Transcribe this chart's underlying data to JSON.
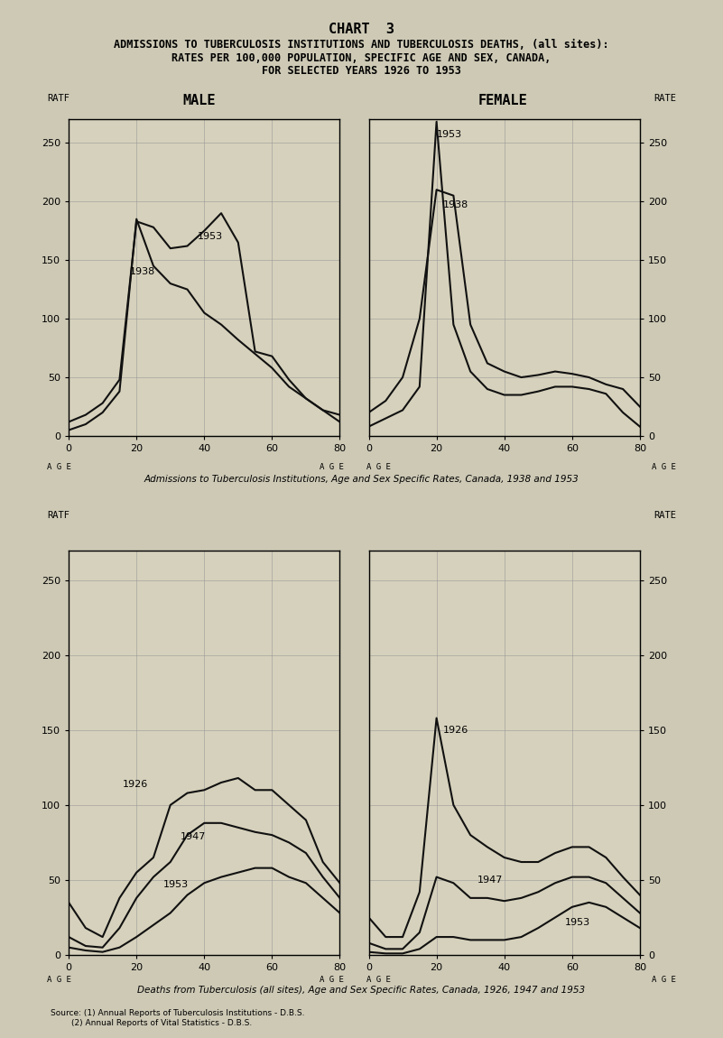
{
  "title_line1": "CHART  3",
  "title_line2": "ADMISSIONS TO TUBERCULOSIS INSTITUTIONS AND TUBERCULOSIS DEATHS, (all sites):",
  "title_line3": "RATES PER 100,000 POPULATION, SPECIFIC AGE AND SEX, CANADA,",
  "title_line4": "FOR SELECTED YEARS 1926 TO 1953",
  "subtitle_top": "Admissions to Tuberculosis Institutions, Age and Sex Specific Rates, Canada, 1938 and 1953",
  "subtitle_bottom": "Deaths from Tuberculosis (all sites), Age and Sex Specific Rates, Canada, 1926, 1947 and 1953",
  "source_line1": "Source: (1) Annual Reports of Tuberculosis Institutions - D.B.S.",
  "source_line2": "        (2) Annual Reports of Vital Statistics - D.B.S.",
  "male_label": "MALE",
  "female_label": "FEMALE",
  "rate_label": "RATE",
  "ratf_label": "RATF",
  "age_label": "AGE",
  "ylim": [
    0,
    270
  ],
  "yticks": [
    0,
    50,
    100,
    150,
    200,
    250
  ],
  "xticks": [
    0,
    20,
    40,
    60,
    80
  ],
  "admissions_male_1938_x": [
    0,
    5,
    10,
    15,
    20,
    25,
    30,
    35,
    40,
    45,
    50,
    55,
    60,
    65,
    70,
    75,
    80
  ],
  "admissions_male_1938_y": [
    5,
    10,
    20,
    38,
    185,
    145,
    130,
    125,
    105,
    95,
    82,
    70,
    58,
    42,
    32,
    22,
    12
  ],
  "admissions_male_1953_x": [
    0,
    5,
    10,
    15,
    20,
    25,
    30,
    35,
    40,
    45,
    50,
    55,
    60,
    65,
    70,
    75,
    80
  ],
  "admissions_male_1953_y": [
    12,
    18,
    28,
    48,
    183,
    178,
    160,
    162,
    175,
    190,
    165,
    72,
    68,
    48,
    32,
    22,
    18
  ],
  "admissions_female_1938_x": [
    0,
    5,
    10,
    15,
    20,
    25,
    30,
    35,
    40,
    45,
    50,
    55,
    60,
    65,
    70,
    75,
    80
  ],
  "admissions_female_1938_y": [
    20,
    30,
    50,
    100,
    210,
    205,
    95,
    62,
    55,
    50,
    52,
    55,
    53,
    50,
    44,
    40,
    25
  ],
  "admissions_female_1953_x": [
    0,
    5,
    10,
    15,
    20,
    25,
    30,
    35,
    40,
    45,
    50,
    55,
    60,
    65,
    70,
    75,
    80
  ],
  "admissions_female_1953_y": [
    8,
    15,
    22,
    42,
    268,
    95,
    55,
    40,
    35,
    35,
    38,
    42,
    42,
    40,
    36,
    20,
    8
  ],
  "deaths_male_1926_x": [
    0,
    5,
    10,
    15,
    20,
    25,
    30,
    35,
    40,
    45,
    50,
    55,
    60,
    65,
    70,
    75,
    80
  ],
  "deaths_male_1926_y": [
    35,
    18,
    12,
    38,
    55,
    65,
    100,
    108,
    110,
    115,
    118,
    110,
    110,
    100,
    90,
    62,
    48
  ],
  "deaths_male_1947_x": [
    0,
    5,
    10,
    15,
    20,
    25,
    30,
    35,
    40,
    45,
    50,
    55,
    60,
    65,
    70,
    75,
    80
  ],
  "deaths_male_1947_y": [
    12,
    6,
    5,
    18,
    38,
    52,
    62,
    80,
    88,
    88,
    85,
    82,
    80,
    75,
    68,
    52,
    38
  ],
  "deaths_male_1953_x": [
    0,
    5,
    10,
    15,
    20,
    25,
    30,
    35,
    40,
    45,
    50,
    55,
    60,
    65,
    70,
    75,
    80
  ],
  "deaths_male_1953_y": [
    5,
    3,
    2,
    5,
    12,
    20,
    28,
    40,
    48,
    52,
    55,
    58,
    58,
    52,
    48,
    38,
    28
  ],
  "deaths_female_1926_x": [
    0,
    5,
    10,
    15,
    20,
    25,
    30,
    35,
    40,
    45,
    50,
    55,
    60,
    65,
    70,
    75,
    80
  ],
  "deaths_female_1926_y": [
    25,
    12,
    12,
    42,
    158,
    100,
    80,
    72,
    65,
    62,
    62,
    68,
    72,
    72,
    65,
    52,
    40
  ],
  "deaths_female_1947_x": [
    0,
    5,
    10,
    15,
    20,
    25,
    30,
    35,
    40,
    45,
    50,
    55,
    60,
    65,
    70,
    75,
    80
  ],
  "deaths_female_1947_y": [
    8,
    4,
    4,
    15,
    52,
    48,
    38,
    38,
    36,
    38,
    42,
    48,
    52,
    52,
    48,
    38,
    28
  ],
  "deaths_female_1953_x": [
    0,
    5,
    10,
    15,
    20,
    25,
    30,
    35,
    40,
    45,
    50,
    55,
    60,
    65,
    70,
    75,
    80
  ],
  "deaths_female_1953_y": [
    2,
    1,
    1,
    4,
    12,
    12,
    10,
    10,
    10,
    12,
    18,
    25,
    32,
    35,
    32,
    25,
    18
  ],
  "background_color": "#cdc9b5",
  "plot_bg_color": "#d6d1bc",
  "line_color": "#111111",
  "grid_color": "#999999"
}
